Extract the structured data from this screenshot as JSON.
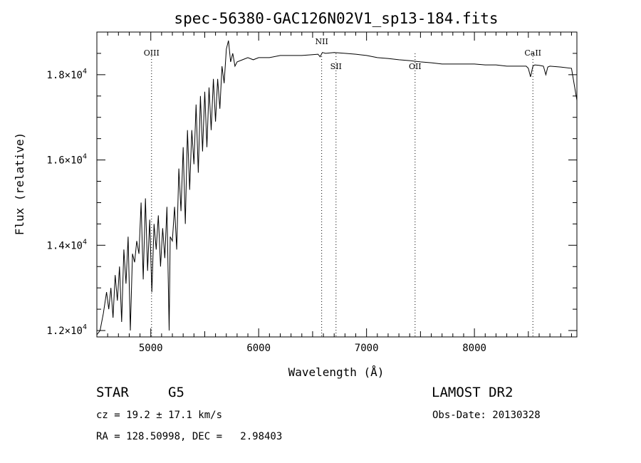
{
  "chart_data": {
    "type": "line",
    "title": "spec-56380-GAC126N02V1_sp13-184.fits",
    "xlabel": "Wavelength (Å)",
    "ylabel": "Flux (relative)",
    "xlim": [
      4500,
      8950
    ],
    "ylim": [
      11850,
      19000
    ],
    "x_ticks": [
      5000,
      6000,
      7000,
      8000
    ],
    "x_tick_labels": [
      "5000",
      "6000",
      "7000",
      "8000"
    ],
    "y_ticks": [
      12000,
      14000,
      16000,
      18000
    ],
    "y_tick_labels": [
      {
        "mantissa": "1.2×10",
        "exponent": "4"
      },
      {
        "mantissa": "1.4×10",
        "exponent": "4"
      },
      {
        "mantissa": "1.6×10",
        "exponent": "4"
      },
      {
        "mantissa": "1.8×10",
        "exponent": "4"
      }
    ],
    "lines": [
      {
        "name": "OIII",
        "wavelength": 5007,
        "label_pos": "top"
      },
      {
        "name": "NII",
        "wavelength": 6584,
        "label_pos": "top"
      },
      {
        "name": "SII",
        "wavelength": 6717,
        "label_pos": "below-spectrum"
      },
      {
        "name": "OII",
        "wavelength": 7450,
        "label_pos": "below-spectrum"
      },
      {
        "name": "CaII",
        "wavelength": 8542,
        "label_pos": "top"
      }
    ],
    "series": [
      {
        "x": [
          4500,
          4530,
          4560,
          4590,
          4610,
          4630,
          4650,
          4670,
          4690,
          4710,
          4730,
          4750,
          4770,
          4790,
          4810,
          4830,
          4850,
          4870,
          4890,
          4910,
          4930,
          4950,
          4970,
          4990,
          5010,
          5030,
          5050,
          5070,
          5090,
          5110,
          5130,
          5150,
          5170,
          5180,
          5200,
          5220,
          5240,
          5260,
          5280,
          5300,
          5320,
          5340,
          5360,
          5380,
          5400,
          5420,
          5440,
          5460,
          5480,
          5500,
          5520,
          5540,
          5560,
          5580,
          5600,
          5620,
          5640,
          5660,
          5680,
          5700,
          5720,
          5740,
          5760,
          5780,
          5800,
          5850,
          5900,
          5950,
          6000,
          6100,
          6200,
          6300,
          6400,
          6500,
          6550,
          6570,
          6590,
          6620,
          6700,
          6800,
          6900,
          7000,
          7100,
          7200,
          7300,
          7400,
          7500,
          7600,
          7700,
          7800,
          7900,
          8000,
          8100,
          8200,
          8300,
          8400,
          8480,
          8500,
          8520,
          8542,
          8560,
          8600,
          8640,
          8662,
          8680,
          8700,
          8800,
          8900,
          8950
        ],
        "y": [
          11900,
          12000,
          12400,
          12900,
          12500,
          13000,
          12300,
          13300,
          12700,
          13500,
          12200,
          13900,
          13100,
          14200,
          12000,
          13800,
          13600,
          14100,
          13800,
          15000,
          13200,
          15100,
          13400,
          14600,
          12900,
          14500,
          13900,
          14700,
          13500,
          14400,
          13700,
          14900,
          12000,
          14200,
          14100,
          14900,
          13900,
          15800,
          14800,
          16300,
          14500,
          16700,
          15300,
          16700,
          15900,
          17300,
          15700,
          17500,
          16200,
          17600,
          16300,
          17700,
          16700,
          17900,
          16900,
          17900,
          17200,
          18200,
          17800,
          18600,
          18800,
          18300,
          18500,
          18200,
          18300,
          18350,
          18400,
          18350,
          18400,
          18400,
          18450,
          18450,
          18450,
          18470,
          18480,
          18420,
          18520,
          18500,
          18520,
          18500,
          18480,
          18450,
          18400,
          18380,
          18350,
          18330,
          18300,
          18280,
          18250,
          18250,
          18250,
          18250,
          18230,
          18230,
          18200,
          18200,
          18200,
          18150,
          17950,
          18200,
          18230,
          18220,
          18200,
          18000,
          18180,
          18200,
          18180,
          18150,
          17400
        ]
      }
    ]
  },
  "info": {
    "class_label": "STAR",
    "subclass": "G5",
    "survey": "LAMOST DR2",
    "cz": "cz = 19.2 ± 17.1 km/s",
    "obs_date": "Obs-Date: 20130328",
    "coords": "RA = 128.50998, DEC =   2.98403"
  }
}
